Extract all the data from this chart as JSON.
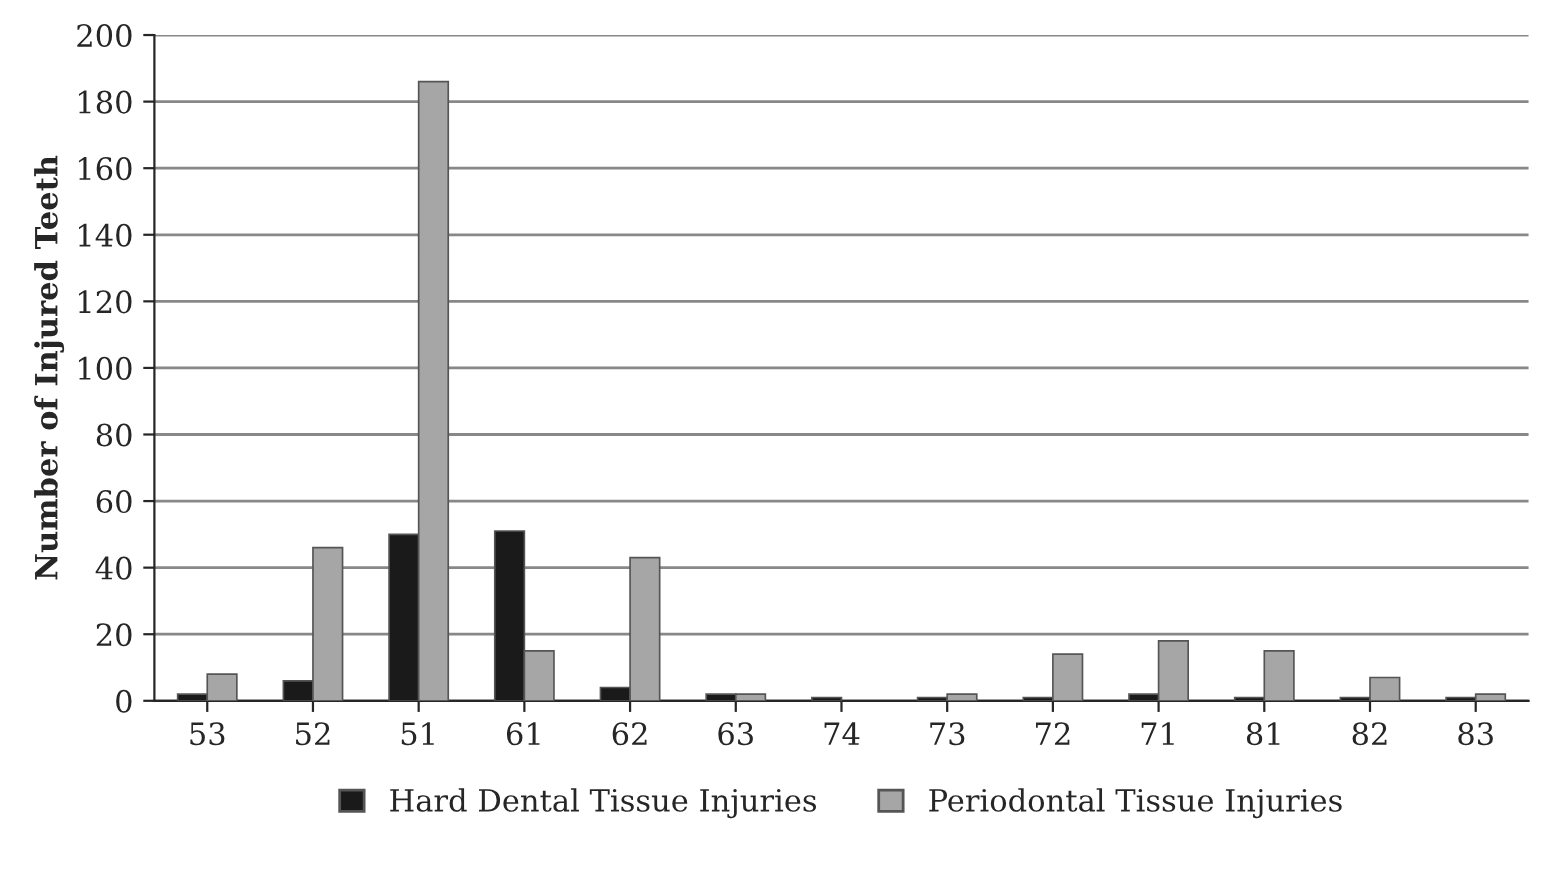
{
  "chart_data": {
    "type": "bar",
    "ylabel": "Number of Injured Teeth",
    "categories": [
      "53",
      "52",
      "51",
      "61",
      "62",
      "63",
      "74",
      "73",
      "72",
      "71",
      "81",
      "82",
      "83"
    ],
    "series": [
      {
        "name": "Hard Dental Tissue Injuries",
        "color": "#1a1a1a",
        "values": [
          2,
          6,
          50,
          51,
          4,
          2,
          1,
          1,
          1,
          2,
          1,
          1,
          1
        ]
      },
      {
        "name": "Periodontal Tissue Injuries",
        "color": "#a6a6a6",
        "values": [
          8,
          46,
          186,
          15,
          43,
          2,
          null,
          2,
          14,
          18,
          15,
          7,
          2
        ]
      }
    ],
    "ylim": [
      0,
      200
    ],
    "yticks": [
      0,
      20,
      40,
      60,
      80,
      100,
      120,
      140,
      160,
      180,
      200
    ],
    "grid": "y",
    "legend": "bottom"
  }
}
